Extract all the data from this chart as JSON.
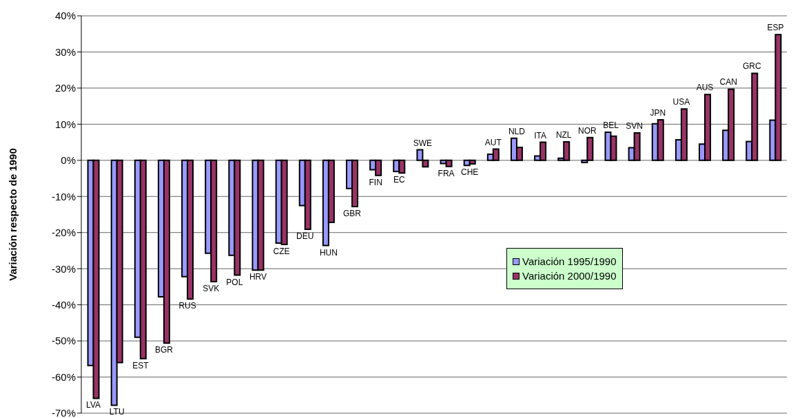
{
  "chart_data": {
    "type": "bar",
    "ylabel": "Variación respecto de 1990",
    "categories": [
      "LVA",
      "LTU",
      "EST",
      "BGR",
      "RUS",
      "SVK",
      "POL",
      "HRV",
      "CZE",
      "DEU",
      "HUN",
      "GBR",
      "FIN",
      "EC",
      "SWE",
      "FRA",
      "CHE",
      "AUT",
      "NLD",
      "ITA",
      "NZL",
      "NOR",
      "BEL",
      "SVN",
      "JPN",
      "USA",
      "AUS",
      "CAN",
      "GRC",
      "ESP"
    ],
    "series": [
      {
        "name": "Variación 1995/1990",
        "color": "#9999ff",
        "values": [
          -56.8,
          -67.8,
          -49,
          -37.8,
          -32.2,
          -25.7,
          -26.3,
          -30.4,
          -22.9,
          -12.5,
          -23.6,
          -7.8,
          -2.6,
          -3.1,
          2.9,
          -0.9,
          -1.4,
          1.7,
          6.1,
          1.2,
          0.6,
          -0.6,
          7.8,
          3.5,
          10.1,
          5.7,
          4.5,
          8.3,
          5.2,
          11.1
        ]
      },
      {
        "name": "Variación 2000/1990",
        "color": "#993366",
        "values": [
          -65.9,
          -56,
          -54.9,
          -50.6,
          -38.4,
          -33.6,
          -31.8,
          -30.4,
          -23.3,
          -19.1,
          -17.2,
          -12.8,
          -4.2,
          -3.5,
          -1.8,
          -1.7,
          -1,
          3.1,
          3.6,
          5,
          5.1,
          6.3,
          6.7,
          7.6,
          11.2,
          14.2,
          18.2,
          19.7,
          24.1,
          34.8
        ]
      }
    ],
    "ylim": [
      -70,
      40
    ],
    "yticks": [
      {
        "value": -70,
        "label": "-70%"
      },
      {
        "value": -60,
        "label": "-60%"
      },
      {
        "value": -50,
        "label": "-50%"
      },
      {
        "value": -40,
        "label": "-40%"
      },
      {
        "value": -30,
        "label": "-30%"
      },
      {
        "value": -20,
        "label": "-20%"
      },
      {
        "value": -10,
        "label": "-10%"
      },
      {
        "value": 0,
        "label": "0%"
      },
      {
        "value": 10,
        "label": "10%"
      },
      {
        "value": 20,
        "label": "20%"
      },
      {
        "value": 30,
        "label": "30%"
      },
      {
        "value": 40,
        "label": "40%"
      }
    ],
    "grid": "y",
    "legend": "bottom right",
    "tick_labels": "y"
  }
}
